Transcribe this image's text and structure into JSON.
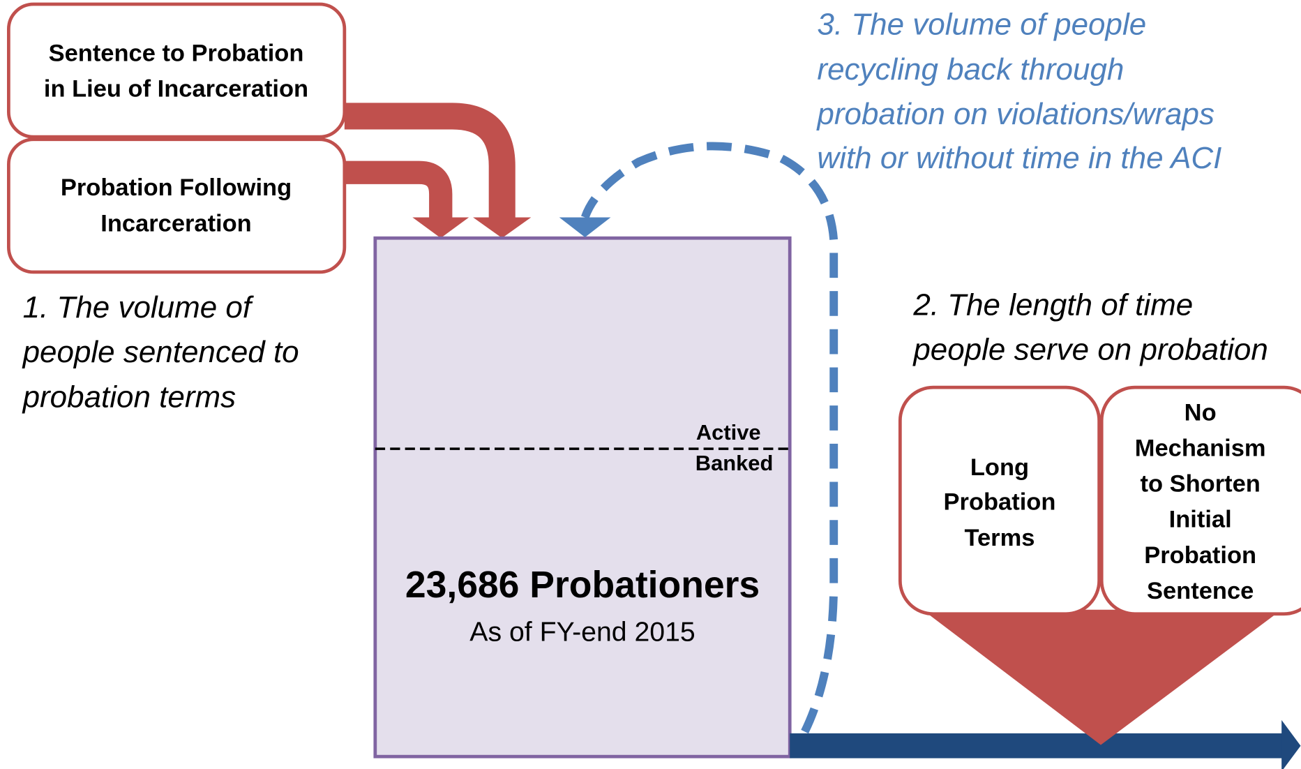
{
  "boxes": [
    {
      "lines": [
        "Sentence to Probation",
        "in Lieu of Incarceration"
      ]
    },
    {
      "lines": [
        "Probation Following",
        "Incarceration"
      ]
    },
    {
      "lines": [
        "Long",
        "Probation",
        "Terms"
      ]
    },
    {
      "lines": [
        "No",
        "Mechanism",
        "to Shorten",
        "Initial",
        "Probation",
        "Sentence"
      ]
    }
  ],
  "population": {
    "active_label": "Active",
    "banked_label": "Banked",
    "title": "23,686 Probationers",
    "subtitle": "As of FY-end 2015"
  },
  "drivers": [
    {
      "lines": [
        "1. The volume of",
        "people sentenced to",
        "probation terms"
      ]
    },
    {
      "lines": [
        "2. The length of time",
        "people serve on probation"
      ]
    },
    {
      "lines": [
        "3. The volume of people",
        "recycling back through",
        "probation on violations/wraps",
        "with or without time in the ACI"
      ]
    }
  ]
}
